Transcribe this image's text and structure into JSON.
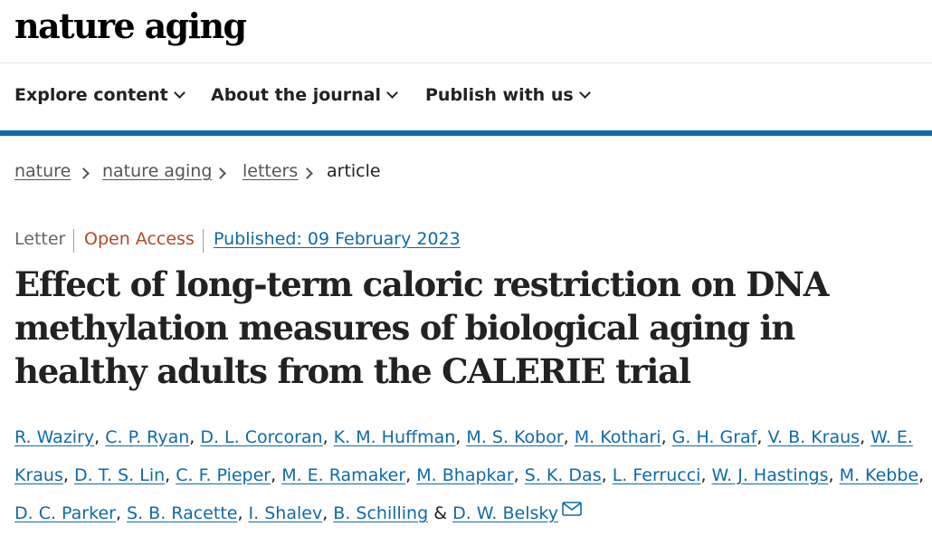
{
  "brand": {
    "logo_text": "nature aging"
  },
  "nav": {
    "items": [
      {
        "label": "Explore content"
      },
      {
        "label": "About the journal"
      },
      {
        "label": "Publish with us"
      }
    ]
  },
  "breadcrumb": {
    "items": [
      "nature",
      "nature aging",
      "letters"
    ],
    "current": "article"
  },
  "article": {
    "type": "Letter",
    "access": "Open Access",
    "published": "Published: 09 February 2023",
    "title": "Effect of long-term caloric restriction on DNA methylation measures of biological aging in healthy adults from the CALERIE trial",
    "authors": [
      "R. Waziry",
      "C. P. Ryan",
      "D. L. Corcoran",
      "K. M. Huffman",
      "M. S. Kobor",
      "M. Kothari",
      "G. H. Graf",
      "V. B. Kraus",
      "W. E. Kraus",
      "D. T. S. Lin",
      "C. F. Pieper",
      "M. E. Ramaker",
      "M. Bhapkar",
      "S. K. Das",
      "L. Ferrucci",
      "W. J. Hastings",
      "M. Kebbe",
      "D. C. Parker",
      "S. B. Racette",
      "I. Shalev",
      "B. Schilling",
      "D. W. Belsky"
    ],
    "final_conjunction": "&",
    "mail_icon": "envelope-icon"
  },
  "colors": {
    "accent": "#0f6aa8",
    "open_access": "#b04a2b",
    "text": "#222222"
  }
}
